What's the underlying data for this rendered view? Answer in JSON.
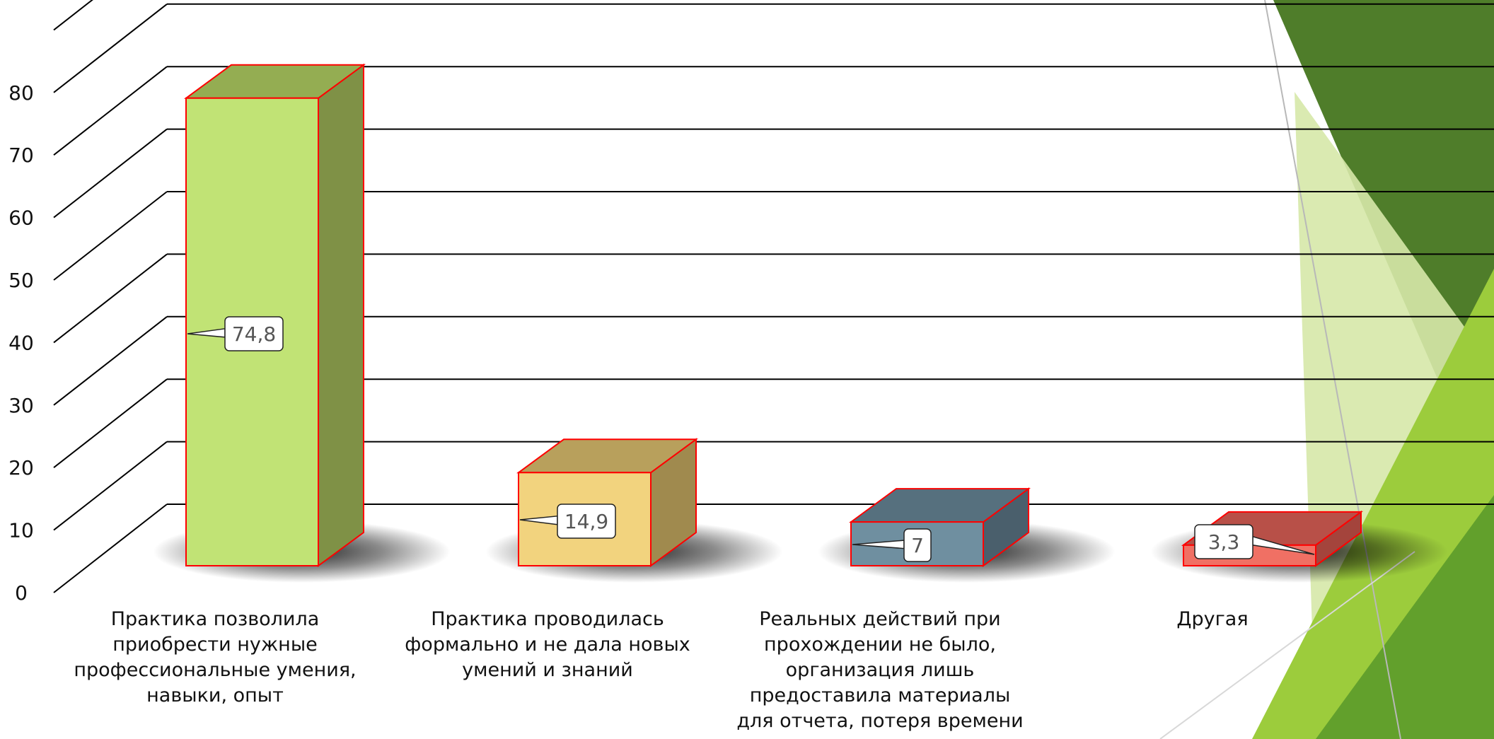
{
  "chart_data": {
    "type": "bar",
    "categories": [
      "Практика позволила\nприобрести нужные\nпрофессиональные умения,\nнавыки, опыт",
      "Практика проводилась\nформально и не дала новых\nумений и знаний",
      "Реальных действий при\nпрохождении не было,\nорганизация лишь\nпредоставила материалы\nдля отчета, потеря времени",
      "Другая"
    ],
    "values": [
      74.8,
      14.9,
      7,
      3.3
    ],
    "value_labels": [
      "74,8",
      "14,9",
      "7",
      "3,3"
    ],
    "yticks": [
      "0",
      "10",
      "20",
      "30",
      "40",
      "50",
      "60",
      "70",
      "80"
    ],
    "ylim": [
      0,
      90
    ],
    "grid": true,
    "style": "3d-column",
    "bar_colors": [
      {
        "front": "#c1e375",
        "side": "#7f9146",
        "top": "#94ad52"
      },
      {
        "front": "#f2d37e",
        "side": "#a08a4e",
        "top": "#b8a05c"
      },
      {
        "front": "#6f8fa0",
        "side": "#4a5f6c",
        "top": "#56707e"
      },
      {
        "front": "#f07064",
        "side": "#a4443c",
        "top": "#b85048"
      }
    ],
    "edge_color": "#ff0000",
    "decoration_colors": [
      "#4f7d2a",
      "#62a02c",
      "#9ccc3c",
      "#d6e8a8"
    ]
  }
}
